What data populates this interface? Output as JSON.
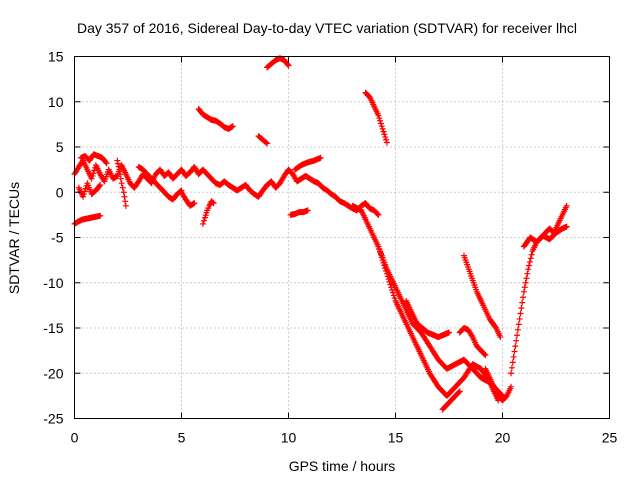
{
  "chart_data": {
    "type": "scatter",
    "title": "Day 357 of 2016, Sidereal Day-to-day VTEC variation (SDTVAR) for receiver lhcl",
    "xlabel": "GPS time / hours",
    "ylabel": "SDTVAR / TECUs",
    "xlim": [
      0,
      25
    ],
    "ylim": [
      -25,
      15
    ],
    "xticks": [
      0,
      5,
      10,
      15,
      20,
      25
    ],
    "yticks": [
      -25,
      -20,
      -15,
      -10,
      -5,
      0,
      5,
      10,
      15
    ],
    "grid": true,
    "marker": "+",
    "color": "#ff0000",
    "series": [
      {
        "x": [
          0.0,
          0.2,
          0.4,
          0.6,
          0.8,
          1.0,
          1.2
        ],
        "y": [
          -3.5,
          -3.2,
          -3.0,
          -2.9,
          -2.8,
          -2.7,
          -2.6
        ]
      },
      {
        "x": [
          0.0,
          0.2,
          0.4,
          0.6,
          0.8,
          1.0,
          1.2,
          1.4,
          1.6,
          1.8,
          2.0,
          2.2,
          2.4,
          2.6,
          2.8,
          3.0,
          3.2,
          3.4,
          3.6,
          3.8,
          4.0,
          4.2,
          4.4,
          4.6,
          4.8,
          5.0,
          5.2,
          5.4,
          5.6,
          5.8,
          6.0,
          6.2,
          6.4,
          6.6,
          6.8,
          7.0,
          7.2,
          7.4,
          7.6,
          7.8,
          8.0,
          8.2,
          8.4,
          8.6,
          8.8,
          9.0,
          9.2,
          9.4,
          9.6,
          9.8,
          10.0,
          10.2,
          10.4,
          10.6,
          10.8,
          11.0,
          11.2,
          11.4,
          11.6,
          11.8,
          12.0,
          12.2,
          12.4,
          12.6,
          12.8,
          13.0,
          13.2,
          13.4,
          13.6,
          13.8,
          14.0,
          14.2
        ],
        "y": [
          2.0,
          2.8,
          3.5,
          2.5,
          1.5,
          3.0,
          2.0,
          1.2,
          2.5,
          1.5,
          1.8,
          3.0,
          2.0,
          1.0,
          0.5,
          1.2,
          2.0,
          1.5,
          1.0,
          2.0,
          2.5,
          1.8,
          2.2,
          1.5,
          2.0,
          2.5,
          1.8,
          2.2,
          2.8,
          2.0,
          2.5,
          2.0,
          1.5,
          1.0,
          0.8,
          1.2,
          0.8,
          0.5,
          0.2,
          0.5,
          0.8,
          0.2,
          -0.2,
          -0.5,
          0.2,
          0.8,
          1.2,
          0.5,
          1.0,
          1.8,
          2.5,
          2.0,
          1.2,
          1.5,
          1.8,
          1.5,
          1.2,
          1.0,
          0.5,
          0.2,
          -0.2,
          -0.5,
          -1.0,
          -1.2,
          -1.5,
          -1.8,
          -2.0,
          -1.5,
          -1.2,
          -1.8,
          -2.0,
          -2.5
        ]
      },
      {
        "x": [
          0.3,
          0.5,
          0.7,
          0.9,
          1.1,
          1.3,
          1.5
        ],
        "y": [
          3.8,
          4.0,
          3.5,
          4.2,
          4.0,
          3.8,
          3.2
        ]
      },
      {
        "x": [
          0.2,
          0.4,
          0.6,
          0.8,
          1.0,
          1.2
        ],
        "y": [
          0.5,
          -0.5,
          1.0,
          -0.2,
          0.2,
          0.8
        ]
      },
      {
        "x": [
          2.0,
          2.1,
          2.2,
          2.3,
          2.4
        ],
        "y": [
          3.5,
          2.5,
          1.0,
          0.0,
          -1.5
        ]
      },
      {
        "x": [
          3.0,
          3.2,
          3.4,
          3.6,
          3.8,
          4.0,
          4.2,
          4.4,
          4.6,
          4.8,
          5.0
        ],
        "y": [
          2.8,
          2.5,
          2.0,
          1.5,
          1.0,
          0.5,
          0.0,
          -0.5,
          -0.8,
          -0.2,
          0.2
        ]
      },
      {
        "x": [
          5.0,
          5.2,
          5.4,
          5.6
        ],
        "y": [
          0.0,
          -0.8,
          -1.5,
          -1.2
        ]
      },
      {
        "x": [
          6.0,
          6.1,
          6.2,
          6.3,
          6.4,
          6.5
        ],
        "y": [
          -3.5,
          -2.8,
          -2.0,
          -1.5,
          -1.0,
          -1.2
        ]
      },
      {
        "x": [
          5.8,
          6.0,
          6.2,
          6.4,
          6.6,
          6.8,
          7.0,
          7.2,
          7.4
        ],
        "y": [
          9.2,
          8.6,
          8.3,
          8.0,
          7.9,
          7.6,
          7.2,
          7.0,
          7.3
        ]
      },
      {
        "x": [
          9.0,
          9.2,
          9.4,
          9.6,
          9.8,
          10.0
        ],
        "y": [
          13.8,
          14.2,
          14.6,
          14.8,
          14.6,
          14.0
        ]
      },
      {
        "x": [
          8.6,
          8.7,
          8.8,
          8.9,
          9.0
        ],
        "y": [
          6.2,
          6.0,
          5.8,
          5.6,
          5.4
        ]
      },
      {
        "x": [
          10.1,
          10.3,
          10.5,
          10.7,
          10.9
        ],
        "y": [
          -2.5,
          -2.4,
          -2.2,
          -2.2,
          -2.0
        ]
      },
      {
        "x": [
          10.3,
          10.6,
          10.9,
          11.2,
          11.5
        ],
        "y": [
          2.5,
          3.0,
          3.3,
          3.5,
          3.8
        ]
      },
      {
        "x": [
          13.6,
          13.8,
          14.0,
          14.2,
          14.4,
          14.6
        ],
        "y": [
          11.0,
          10.5,
          9.5,
          8.5,
          7.0,
          5.5
        ]
      },
      {
        "x": [
          13.0,
          13.4,
          13.8,
          14.2,
          14.6,
          15.0,
          15.4,
          15.8,
          16.2,
          16.6,
          17.0,
          17.4,
          17.8,
          18.2,
          18.6,
          19.0,
          19.4,
          19.8,
          20.0
        ],
        "y": [
          -1.5,
          -2.0,
          -4.0,
          -6.0,
          -8.5,
          -10.5,
          -12.5,
          -14.5,
          -15.5,
          -17.0,
          -18.5,
          -19.5,
          -19.0,
          -18.5,
          -19.5,
          -20.5,
          -21.0,
          -22.0,
          -22.5
        ]
      },
      {
        "x": [
          14.2,
          14.6,
          15.0,
          15.4,
          15.8,
          16.2,
          16.6,
          17.0,
          17.4,
          17.8,
          18.2,
          18.6,
          19.0,
          19.4,
          19.8
        ],
        "y": [
          -6.0,
          -9.0,
          -12.0,
          -14.0,
          -16.0,
          -18.0,
          -20.0,
          -21.5,
          -22.5,
          -21.5,
          -20.5,
          -19.0,
          -19.5,
          -21.0,
          -23.0
        ]
      },
      {
        "x": [
          15.5,
          16.0,
          16.5,
          17.0,
          17.5
        ],
        "y": [
          -12.0,
          -14.5,
          -15.5,
          -16.0,
          -15.5
        ]
      },
      {
        "x": [
          17.2,
          17.4,
          17.6,
          17.8,
          18.0
        ],
        "y": [
          -24.0,
          -23.5,
          -23.0,
          -22.5,
          -22.0
        ]
      },
      {
        "x": [
          18.0,
          18.2,
          18.4,
          18.6,
          18.8,
          19.0,
          19.2
        ],
        "y": [
          -15.5,
          -15.0,
          -15.2,
          -16.0,
          -17.0,
          -17.5,
          -18.0
        ]
      },
      {
        "x": [
          18.2,
          18.5,
          18.8,
          19.1,
          19.4,
          19.7,
          19.9
        ],
        "y": [
          -7.0,
          -9.0,
          -11.0,
          -12.5,
          -14.0,
          -15.0,
          -16.0
        ]
      },
      {
        "x": [
          19.2,
          19.4,
          19.6,
          19.8,
          20.0,
          20.2,
          20.4
        ],
        "y": [
          -19.5,
          -20.5,
          -21.5,
          -22.5,
          -23.0,
          -22.5,
          -21.5
        ]
      },
      {
        "x": [
          20.4,
          20.6,
          20.8,
          21.0,
          21.2,
          21.4,
          21.6,
          21.8,
          22.0,
          22.2,
          22.4,
          22.6,
          22.8,
          23.0
        ],
        "y": [
          -20.0,
          -17.0,
          -14.0,
          -11.0,
          -8.5,
          -6.5,
          -5.5,
          -5.0,
          -4.5,
          -4.0,
          -4.5,
          -3.5,
          -2.5,
          -1.5
        ]
      },
      {
        "x": [
          21.0,
          21.3,
          21.6,
          21.9,
          22.2,
          22.5,
          22.8,
          23.0
        ],
        "y": [
          -6.0,
          -5.0,
          -5.5,
          -4.8,
          -5.2,
          -4.5,
          -4.0,
          -3.8
        ]
      }
    ]
  }
}
